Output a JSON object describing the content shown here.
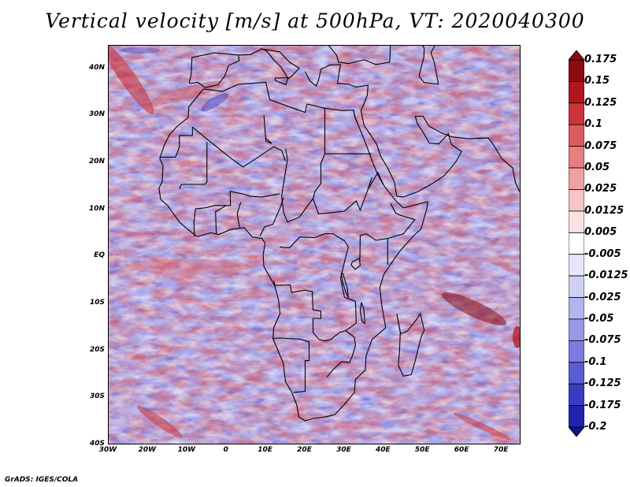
{
  "title": "Vertical velocity [m/s] at 500hPa, VT: 2020040300",
  "credit": "GrADS: IGES/COLA",
  "map": {
    "variable": "Vertical velocity",
    "units": "m/s",
    "level": "500hPa",
    "valid_time": "2020040300",
    "lat_range": [
      -40,
      45
    ],
    "lon_range": [
      -30,
      75
    ],
    "lat_labels": [
      "40N",
      "30N",
      "20N",
      "10N",
      "EQ",
      "10S",
      "20S",
      "30S",
      "40S"
    ],
    "lon_labels": [
      "30W",
      "20W",
      "10W",
      "0",
      "10E",
      "20E",
      "30E",
      "40E",
      "50E",
      "60E",
      "70E"
    ]
  },
  "colorbar": {
    "levels": [
      "0.175",
      "0.15",
      "0.125",
      "0.1",
      "0.075",
      "0.05",
      "0.025",
      "0.0125",
      "0.005",
      "-0.005",
      "-0.0125",
      "-0.025",
      "-0.05",
      "-0.075",
      "-0.1",
      "-0.125",
      "-0.175",
      "-0.2"
    ],
    "colors": [
      "#8b0a10",
      "#b4161e",
      "#cd3538",
      "#dc5b5c",
      "#e67f7f",
      "#efa2a2",
      "#f5c4c4",
      "#fae2e2",
      "#ffffff",
      "#e6e6fa",
      "#cfcff5",
      "#b4b4ee",
      "#9898e6",
      "#7c7cdd",
      "#5c5cd2",
      "#3c3cc2",
      "#2222ad",
      "#12128f"
    ]
  }
}
